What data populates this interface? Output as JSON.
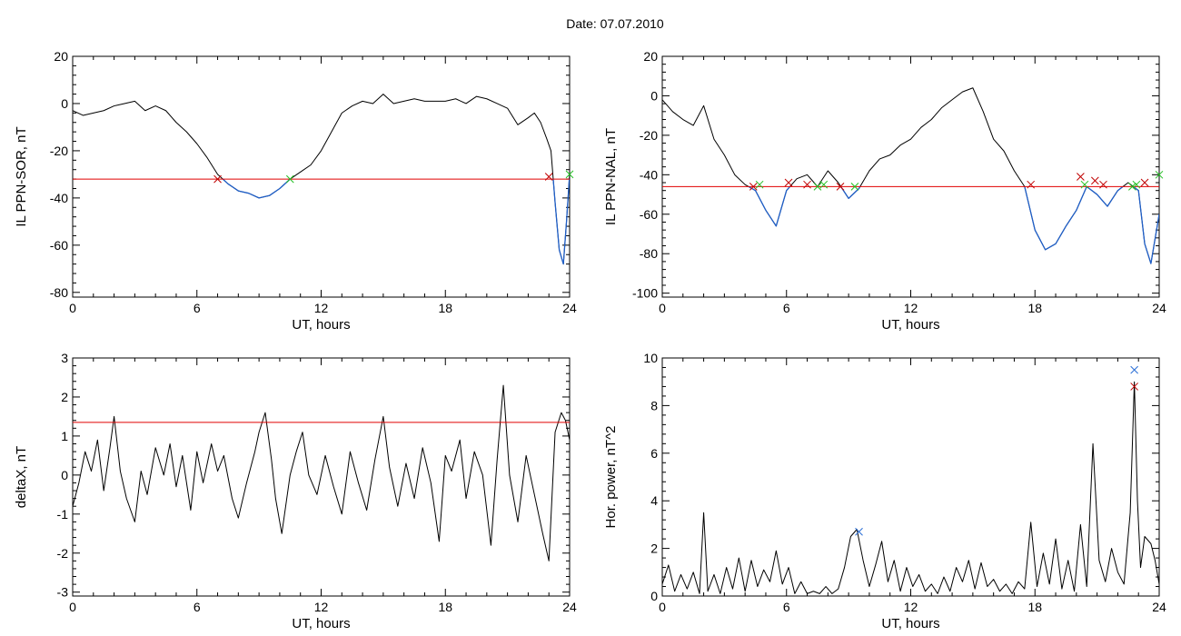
{
  "figure_title": "Date:  07.07.2010",
  "colors": {
    "axis": "#000000",
    "data": "#000000",
    "below_threshold": "#1f5fc8",
    "threshold": "#e00000",
    "cross_red": "#c00000",
    "cross_green": "#22c022",
    "cross_blue": "#2b6fd6"
  },
  "chart_data": [
    {
      "type": "line",
      "id": "ppn-sor",
      "title": "",
      "xlabel": "UT, hours",
      "ylabel": "IL PPN-SOR, nT",
      "xlim": [
        0,
        24
      ],
      "ylim": [
        -82,
        20
      ],
      "xticks": [
        0,
        6,
        12,
        18,
        24
      ],
      "yticks": [
        -80,
        -60,
        -40,
        -20,
        0,
        20
      ],
      "grid": false,
      "threshold": -32,
      "threshold_color": "red",
      "below_color": "blue",
      "series": [
        {
          "x": [
            0,
            0.5,
            1,
            1.5,
            2,
            2.5,
            3,
            3.5,
            4,
            4.5,
            5,
            5.5,
            6,
            6.5,
            7,
            7.5,
            8,
            8.5,
            9,
            9.5,
            10,
            10.5,
            11,
            11.5,
            12,
            12.5,
            13,
            13.5,
            14,
            14.5,
            15,
            15.5,
            16,
            16.5,
            17,
            17.5,
            18,
            18.5,
            19,
            19.5,
            20,
            20.5,
            21,
            21.5,
            22,
            22.3,
            22.6,
            22.9,
            23.1,
            23.3,
            23.5,
            23.7,
            23.85,
            24
          ],
          "y": [
            -3,
            -5,
            -4,
            -3,
            -1,
            0,
            1,
            -3,
            -1,
            -3,
            -8,
            -12,
            -17,
            -23,
            -30,
            -34,
            -37,
            -38,
            -40,
            -39,
            -36,
            -32,
            -29,
            -26,
            -20,
            -12,
            -4,
            -1,
            1,
            0,
            4,
            0,
            1,
            2,
            1,
            1,
            1,
            2,
            0,
            3,
            2,
            0,
            -2,
            -9,
            -6,
            -4,
            -8,
            -15,
            -20,
            -42,
            -62,
            -68,
            -50,
            -30
          ]
        }
      ],
      "markers": [
        {
          "x": 7.0,
          "y": -32,
          "color": "red"
        },
        {
          "x": 10.5,
          "y": -32,
          "color": "green"
        },
        {
          "x": 23.0,
          "y": -31,
          "color": "red"
        },
        {
          "x": 24.0,
          "y": -30,
          "color": "green"
        }
      ]
    },
    {
      "type": "line",
      "id": "ppn-nal",
      "title": "",
      "xlabel": "UT, hours",
      "ylabel": "IL PPN-NAL, nT",
      "xlim": [
        0,
        24
      ],
      "ylim": [
        -102,
        20
      ],
      "xticks": [
        0,
        6,
        12,
        18,
        24
      ],
      "yticks": [
        -100,
        -80,
        -60,
        -40,
        -20,
        0,
        20
      ],
      "grid": false,
      "threshold": -46,
      "threshold_color": "red",
      "below_color": "blue",
      "series": [
        {
          "x": [
            0,
            0.5,
            1,
            1.5,
            2,
            2.5,
            3,
            3.5,
            4,
            4.5,
            5,
            5.5,
            6,
            6.5,
            7,
            7.5,
            8,
            8.5,
            9,
            9.5,
            10,
            10.5,
            11,
            11.5,
            12,
            12.5,
            13,
            13.5,
            14,
            14.5,
            15,
            15.5,
            16,
            16.5,
            17,
            17.5,
            18,
            18.5,
            19,
            19.5,
            20,
            20.5,
            21,
            21.5,
            22,
            22.5,
            23,
            23.3,
            23.6,
            24
          ],
          "y": [
            -2,
            -8,
            -12,
            -15,
            -5,
            -22,
            -30,
            -40,
            -45,
            -48,
            -58,
            -66,
            -48,
            -42,
            -40,
            -46,
            -38,
            -44,
            -52,
            -47,
            -38,
            -32,
            -30,
            -25,
            -22,
            -16,
            -12,
            -6,
            -2,
            2,
            4,
            -8,
            -22,
            -28,
            -38,
            -46,
            -68,
            -78,
            -75,
            -66,
            -58,
            -46,
            -50,
            -56,
            -48,
            -44,
            -48,
            -75,
            -85,
            -60
          ]
        }
      ],
      "markers": [
        {
          "x": 4.4,
          "y": -46,
          "color": "red"
        },
        {
          "x": 4.7,
          "y": -45,
          "color": "green"
        },
        {
          "x": 6.1,
          "y": -44,
          "color": "red"
        },
        {
          "x": 7.0,
          "y": -45,
          "color": "red"
        },
        {
          "x": 7.5,
          "y": -46,
          "color": "green"
        },
        {
          "x": 7.8,
          "y": -45,
          "color": "green"
        },
        {
          "x": 8.6,
          "y": -46,
          "color": "red"
        },
        {
          "x": 9.3,
          "y": -46,
          "color": "green"
        },
        {
          "x": 17.8,
          "y": -45,
          "color": "red"
        },
        {
          "x": 20.2,
          "y": -41,
          "color": "red"
        },
        {
          "x": 20.4,
          "y": -45,
          "color": "green"
        },
        {
          "x": 20.9,
          "y": -43,
          "color": "red"
        },
        {
          "x": 21.3,
          "y": -45,
          "color": "red"
        },
        {
          "x": 22.7,
          "y": -46,
          "color": "green"
        },
        {
          "x": 22.9,
          "y": -45,
          "color": "green"
        },
        {
          "x": 23.3,
          "y": -44,
          "color": "red"
        },
        {
          "x": 24.0,
          "y": -40,
          "color": "green"
        }
      ]
    },
    {
      "type": "line",
      "id": "deltax",
      "title": "",
      "xlabel": "UT, hours",
      "ylabel": "deltaX, nT",
      "xlim": [
        0,
        24
      ],
      "ylim": [
        -3.1,
        3
      ],
      "xticks": [
        0,
        6,
        12,
        18,
        24
      ],
      "yticks": [
        -3,
        -2,
        -1,
        0,
        1,
        2,
        3
      ],
      "grid": false,
      "threshold": 1.35,
      "threshold_color": "red",
      "series": [
        {
          "x": [
            0,
            0.3,
            0.6,
            0.9,
            1.2,
            1.5,
            1.8,
            2.0,
            2.3,
            2.6,
            3.0,
            3.3,
            3.6,
            4.0,
            4.4,
            4.7,
            5.0,
            5.3,
            5.7,
            6.0,
            6.3,
            6.7,
            7.0,
            7.3,
            7.7,
            8.0,
            8.4,
            8.8,
            9.0,
            9.3,
            9.6,
            9.8,
            10.1,
            10.5,
            10.8,
            11.1,
            11.4,
            11.8,
            12.2,
            12.6,
            13.0,
            13.4,
            13.8,
            14.2,
            14.6,
            15.0,
            15.3,
            15.7,
            16.1,
            16.5,
            16.9,
            17.3,
            17.7,
            18.0,
            18.3,
            18.7,
            19.0,
            19.4,
            19.8,
            20.2,
            20.5,
            20.8,
            21.1,
            21.5,
            21.9,
            22.3,
            22.7,
            23.0,
            23.3,
            23.6,
            23.8,
            24.0
          ],
          "y": [
            -0.8,
            -0.2,
            0.6,
            0.1,
            0.9,
            -0.4,
            0.7,
            1.5,
            0.1,
            -0.6,
            -1.2,
            0.1,
            -0.5,
            0.7,
            0.0,
            0.8,
            -0.3,
            0.5,
            -0.9,
            0.6,
            -0.2,
            0.8,
            0.1,
            0.5,
            -0.6,
            -1.1,
            -0.2,
            0.6,
            1.1,
            1.6,
            0.4,
            -0.6,
            -1.5,
            0.0,
            0.6,
            1.1,
            0.0,
            -0.5,
            0.5,
            -0.3,
            -1.0,
            0.6,
            -0.2,
            -0.9,
            0.4,
            1.5,
            0.2,
            -0.8,
            0.3,
            -0.6,
            0.7,
            -0.2,
            -1.7,
            0.5,
            0.1,
            0.9,
            -0.6,
            0.6,
            0.0,
            -1.8,
            0.4,
            2.3,
            0.0,
            -1.2,
            0.5,
            -0.5,
            -1.5,
            -2.2,
            1.1,
            1.6,
            1.4,
            0.9
          ]
        }
      ]
    },
    {
      "type": "line",
      "id": "hor-power",
      "title": "",
      "xlabel": "UT, hours",
      "ylabel": "Hor. power, nT^2",
      "xlim": [
        0,
        24
      ],
      "ylim": [
        0,
        10
      ],
      "xticks": [
        0,
        6,
        12,
        18,
        24
      ],
      "yticks": [
        0,
        2,
        4,
        6,
        8,
        10
      ],
      "grid": false,
      "series": [
        {
          "x": [
            0,
            0.3,
            0.6,
            0.9,
            1.2,
            1.5,
            1.8,
            2.0,
            2.2,
            2.5,
            2.8,
            3.1,
            3.4,
            3.7,
            4.0,
            4.3,
            4.6,
            4.9,
            5.2,
            5.5,
            5.8,
            6.1,
            6.4,
            6.7,
            7.0,
            7.3,
            7.6,
            7.9,
            8.2,
            8.5,
            8.8,
            9.1,
            9.4,
            9.7,
            10.0,
            10.3,
            10.6,
            10.9,
            11.2,
            11.5,
            11.8,
            12.1,
            12.4,
            12.7,
            13.0,
            13.3,
            13.6,
            13.9,
            14.2,
            14.5,
            14.8,
            15.1,
            15.4,
            15.7,
            16.0,
            16.3,
            16.6,
            16.9,
            17.2,
            17.5,
            17.8,
            18.1,
            18.4,
            18.7,
            19.0,
            19.3,
            19.6,
            19.9,
            20.2,
            20.5,
            20.8,
            21.1,
            21.4,
            21.7,
            22.0,
            22.3,
            22.6,
            22.8,
            22.95,
            23.1,
            23.3,
            23.6,
            23.8,
            24.0
          ],
          "y": [
            0.5,
            1.3,
            0.2,
            0.9,
            0.3,
            1.0,
            0.1,
            3.5,
            0.2,
            0.9,
            0.1,
            1.2,
            0.3,
            1.6,
            0.2,
            1.5,
            0.4,
            1.1,
            0.6,
            1.9,
            0.5,
            1.2,
            0.1,
            0.6,
            0.1,
            0.2,
            0.1,
            0.4,
            0.1,
            0.3,
            1.2,
            2.5,
            2.8,
            1.5,
            0.4,
            1.3,
            2.3,
            0.6,
            1.5,
            0.2,
            1.2,
            0.4,
            0.9,
            0.2,
            0.5,
            0.1,
            0.8,
            0.2,
            1.2,
            0.6,
            1.5,
            0.3,
            1.4,
            0.4,
            0.7,
            0.2,
            0.5,
            0.1,
            0.6,
            0.3,
            3.1,
            0.4,
            1.8,
            0.5,
            2.4,
            0.3,
            1.5,
            0.2,
            3.0,
            0.4,
            6.4,
            1.5,
            0.6,
            2.0,
            1.0,
            0.5,
            3.5,
            9.0,
            4.0,
            1.2,
            2.5,
            2.2,
            1.5,
            0.5
          ]
        }
      ],
      "markers": [
        {
          "x": 9.5,
          "y": 2.7,
          "color": "blue"
        },
        {
          "x": 22.8,
          "y": 9.5,
          "color": "blue"
        },
        {
          "x": 22.8,
          "y": 8.8,
          "color": "red"
        }
      ]
    }
  ]
}
